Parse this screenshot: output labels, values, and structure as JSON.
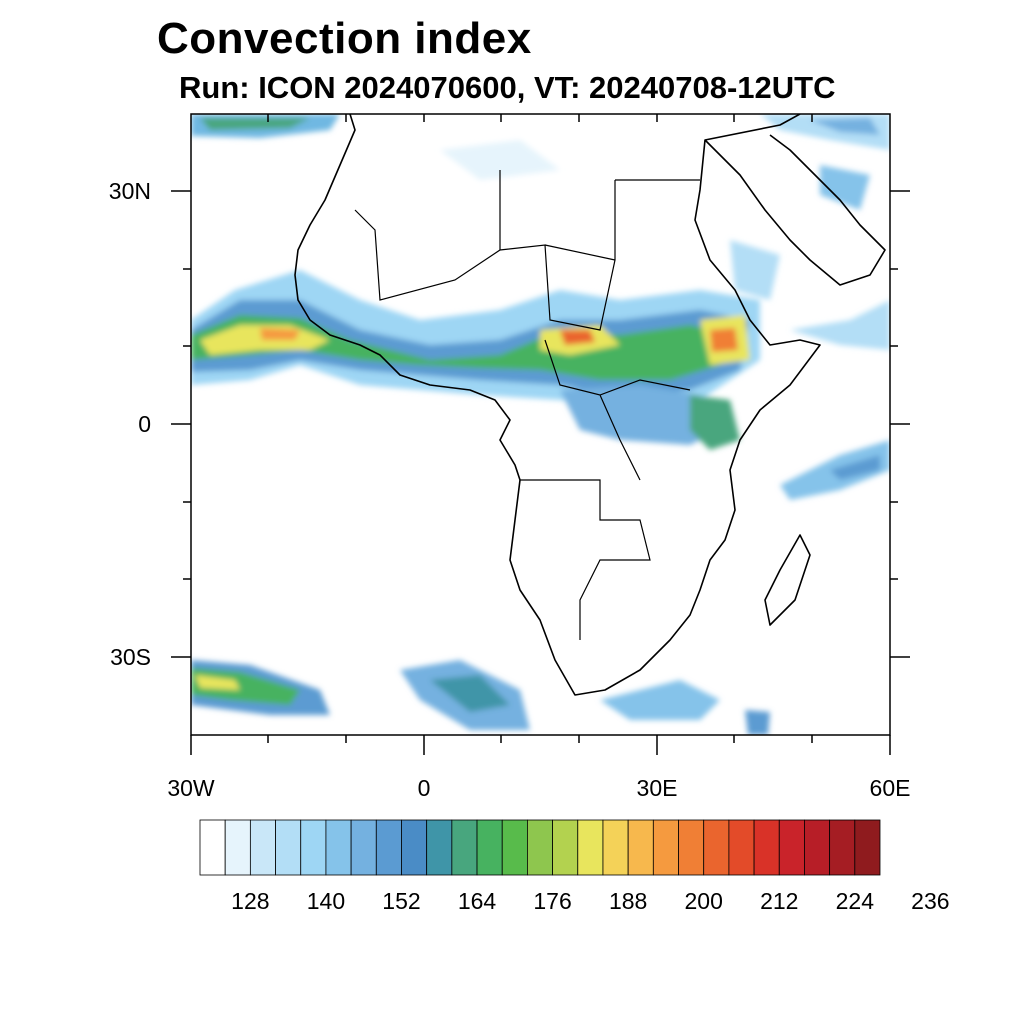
{
  "title": "Convection index",
  "subtitle": "Run: ICON 2024070600,  VT: 20240708-12UTC",
  "latitude_labels": [
    "30N",
    "0",
    "30S"
  ],
  "longitude_labels": [
    "30W",
    "0",
    "30E",
    "60E"
  ],
  "colorbar": {
    "tick_labels": [
      "128",
      "140",
      "152",
      "164",
      "176",
      "188",
      "200",
      "212",
      "224",
      "236"
    ],
    "colors": [
      "#ffffff",
      "#e6f4fc",
      "#c9e7f8",
      "#b3def6",
      "#9ed6f4",
      "#85c3ea",
      "#74b1e0",
      "#5b9bd2",
      "#4a8cc6",
      "#3f95a8",
      "#48a67e",
      "#47b260",
      "#58bb4b",
      "#8ec64e",
      "#b3d24f",
      "#e8e55d",
      "#f4d258",
      "#f7b84d",
      "#f59a3f",
      "#f07f35",
      "#ea652e",
      "#e34b29",
      "#d93228",
      "#c9232a",
      "#b71e27",
      "#a51d23",
      "#8f1b1e"
    ]
  },
  "map_extent": {
    "lon": [
      -30,
      60
    ],
    "lat": [
      -40,
      40
    ]
  }
}
